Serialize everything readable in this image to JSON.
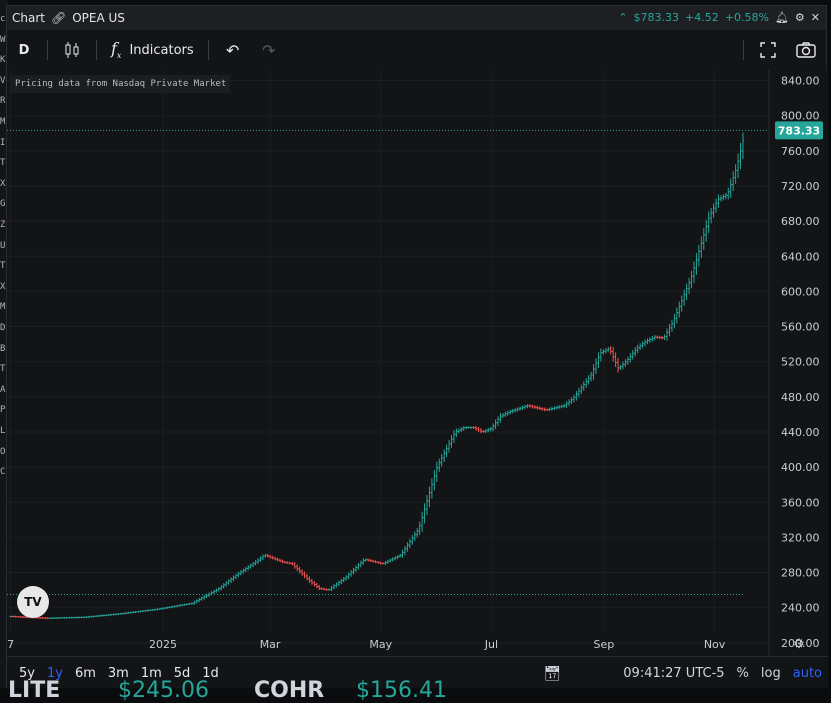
{
  "outer_sidebar_letters": [
    "c",
    "W",
    "K",
    "V",
    "R",
    "M",
    "I",
    "T",
    "X",
    "G",
    "Z",
    "U",
    "T",
    "X",
    "M",
    "D",
    "B",
    "T",
    "A",
    "P",
    "L",
    "O",
    "C"
  ],
  "header": {
    "title": "Chart",
    "symbol": "OPEA US",
    "price": "$783.33",
    "change": "+4.52",
    "change_pct": "+0.58%"
  },
  "toolbar": {
    "interval": "D",
    "indicators_label": "Indicators"
  },
  "notice": "Pricing data from Nasdaq Private Market",
  "bottom_bar": {
    "ranges": [
      "5y",
      "1y",
      "6m",
      "3m",
      "1m",
      "5d",
      "1d"
    ],
    "active_range": "1y",
    "time": "09:41:27 UTC-5",
    "percent_label": "%",
    "log_label": "log",
    "auto_label": "auto"
  },
  "below_ticker": {
    "left_symbol": "LITE",
    "left_price": "$245.06",
    "right_symbol": "COHR",
    "right_price": "$156.41"
  },
  "colors": {
    "up": "#26a69a",
    "down": "#ef5350",
    "background": "#131416",
    "accent": "#2962ff"
  },
  "chart_data": {
    "type": "ohlc",
    "symbol": "OPEA US",
    "last_price": "783.33",
    "reference_line": 255,
    "y_ticks": [
      "840.00",
      "800.00",
      "760.00",
      "720.00",
      "680.00",
      "640.00",
      "600.00",
      "560.00",
      "520.00",
      "480.00",
      "440.00",
      "400.00",
      "360.00",
      "320.00",
      "280.00",
      "240.00",
      "200.00"
    ],
    "ylim": [
      185,
      852
    ],
    "x_ticks": [
      {
        "label": "7",
        "day": 0
      },
      {
        "label": "2025",
        "day": 84
      },
      {
        "label": "Mar",
        "day": 143
      },
      {
        "label": "May",
        "day": 204
      },
      {
        "label": "Jul",
        "day": 265
      },
      {
        "label": "Sep",
        "day": 327
      },
      {
        "label": "Nov",
        "day": 388
      }
    ],
    "x_range": [
      -2,
      418
    ],
    "points": [
      [
        0,
        230
      ],
      [
        20,
        228
      ],
      [
        40,
        229
      ],
      [
        60,
        233
      ],
      [
        80,
        238
      ],
      [
        100,
        245
      ],
      [
        115,
        262
      ],
      [
        125,
        278
      ],
      [
        135,
        292
      ],
      [
        140,
        300
      ],
      [
        150,
        292
      ],
      [
        155,
        290
      ],
      [
        160,
        280
      ],
      [
        165,
        270
      ],
      [
        170,
        262
      ],
      [
        175,
        260
      ],
      [
        185,
        275
      ],
      [
        195,
        295
      ],
      [
        205,
        290
      ],
      [
        215,
        300
      ],
      [
        225,
        330
      ],
      [
        235,
        400
      ],
      [
        245,
        440
      ],
      [
        250,
        445
      ],
      [
        255,
        445
      ],
      [
        260,
        440
      ],
      [
        265,
        444
      ],
      [
        270,
        458
      ],
      [
        275,
        463
      ],
      [
        285,
        470
      ],
      [
        295,
        465
      ],
      [
        305,
        470
      ],
      [
        310,
        478
      ],
      [
        320,
        505
      ],
      [
        325,
        530
      ],
      [
        330,
        535
      ],
      [
        335,
        512
      ],
      [
        340,
        522
      ],
      [
        345,
        535
      ],
      [
        350,
        543
      ],
      [
        355,
        548
      ],
      [
        360,
        547
      ],
      [
        365,
        565
      ],
      [
        370,
        590
      ],
      [
        375,
        615
      ],
      [
        380,
        650
      ],
      [
        385,
        685
      ],
      [
        390,
        705
      ],
      [
        395,
        710
      ],
      [
        400,
        740
      ],
      [
        405,
        783
      ]
    ]
  }
}
